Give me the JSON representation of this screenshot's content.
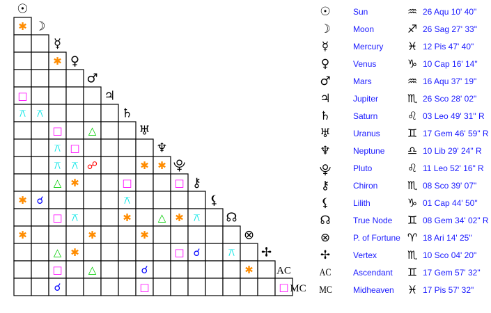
{
  "points": [
    {
      "name": "Sun",
      "glyph": "☉",
      "sign": "♒︎",
      "position": "26 Aqu 10' 40\""
    },
    {
      "name": "Moon",
      "glyph": "☽",
      "sign": "♐︎",
      "position": "26 Sag 27' 33\""
    },
    {
      "name": "Mercury",
      "glyph": "☿",
      "sign": "♓︎",
      "position": "12 Pis 47' 40\""
    },
    {
      "name": "Venus",
      "glyph": "♀",
      "sign": "♑︎",
      "position": "10 Cap 16' 14\""
    },
    {
      "name": "Mars",
      "glyph": "♂",
      "sign": "♒︎",
      "position": "16 Aqu 37' 19\""
    },
    {
      "name": "Jupiter",
      "glyph": "♃",
      "sign": "♏︎",
      "position": "26 Sco 28' 02\""
    },
    {
      "name": "Saturn",
      "glyph": "♄",
      "sign": "♌︎",
      "position": "03 Leo 49' 31\" R"
    },
    {
      "name": "Uranus",
      "glyph": "♅",
      "sign": "♊︎",
      "position": "17 Gem 46' 59\" R"
    },
    {
      "name": "Neptune",
      "glyph": "♆",
      "sign": "♎︎",
      "position": "10 Lib 29' 24\" R"
    },
    {
      "name": "Pluto",
      "glyph": "⯓",
      "sign": "♌︎",
      "position": "11 Leo 52' 16\" R"
    },
    {
      "name": "Chiron",
      "glyph": "⚷",
      "sign": "♏︎",
      "position": "08 Sco 39' 07\""
    },
    {
      "name": "Lilith",
      "glyph": "⚸",
      "sign": "♑︎",
      "position": "01 Cap 44' 50\""
    },
    {
      "name": "True Node",
      "glyph": "☊",
      "sign": "♊︎",
      "position": "08 Gem 34' 02\" R"
    },
    {
      "name": "P. of Fortune",
      "glyph": "⊗",
      "sign": "♈︎",
      "position": "18 Ari 14' 25\""
    },
    {
      "name": "Vertex",
      "glyph": "✢",
      "sign": "♏︎",
      "position": "10 Sco 04' 20\""
    },
    {
      "name": "Ascendant",
      "glyph": "AC",
      "sign": "♊︎",
      "position": "17 Gem 57' 32\""
    },
    {
      "name": "Midheaven",
      "glyph": "MC",
      "sign": "♓︎",
      "position": "17 Pis 57' 32\""
    }
  ],
  "aspect_types": {
    "sextile": {
      "glyph": "✱",
      "color": "#ff8c00"
    },
    "square": {
      "glyph": "□",
      "color": "#ff00ff"
    },
    "trine": {
      "glyph": "△",
      "color": "#00cc00"
    },
    "quincunx": {
      "glyph": "⚻",
      "color": "#00e5e5"
    },
    "opposition": {
      "glyph": "☍",
      "color": "#ff0000"
    },
    "conjunction": {
      "glyph": "☌",
      "color": "#0000ff"
    }
  },
  "aspects": [
    {
      "a": "Moon",
      "b": "Sun",
      "type": "sextile"
    },
    {
      "a": "Venus",
      "b": "Mercury",
      "type": "sextile"
    },
    {
      "a": "Jupiter",
      "b": "Sun",
      "type": "square"
    },
    {
      "a": "Saturn",
      "b": "Sun",
      "type": "quincunx"
    },
    {
      "a": "Saturn",
      "b": "Moon",
      "type": "quincunx"
    },
    {
      "a": "Uranus",
      "b": "Mercury",
      "type": "square"
    },
    {
      "a": "Uranus",
      "b": "Mars",
      "type": "trine"
    },
    {
      "a": "Neptune",
      "b": "Mercury",
      "type": "quincunx"
    },
    {
      "a": "Neptune",
      "b": "Venus",
      "type": "square"
    },
    {
      "a": "Pluto",
      "b": "Mercury",
      "type": "quincunx"
    },
    {
      "a": "Pluto",
      "b": "Venus",
      "type": "quincunx"
    },
    {
      "a": "Pluto",
      "b": "Mars",
      "type": "opposition"
    },
    {
      "a": "Pluto",
      "b": "Uranus",
      "type": "sextile"
    },
    {
      "a": "Pluto",
      "b": "Neptune",
      "type": "sextile"
    },
    {
      "a": "Chiron",
      "b": "Mercury",
      "type": "trine"
    },
    {
      "a": "Chiron",
      "b": "Venus",
      "type": "sextile"
    },
    {
      "a": "Chiron",
      "b": "Saturn",
      "type": "square"
    },
    {
      "a": "Chiron",
      "b": "Pluto",
      "type": "square"
    },
    {
      "a": "Lilith",
      "b": "Sun",
      "type": "sextile"
    },
    {
      "a": "Lilith",
      "b": "Moon",
      "type": "conjunction"
    },
    {
      "a": "Lilith",
      "b": "Saturn",
      "type": "quincunx"
    },
    {
      "a": "True Node",
      "b": "Mercury",
      "type": "square"
    },
    {
      "a": "True Node",
      "b": "Venus",
      "type": "quincunx"
    },
    {
      "a": "True Node",
      "b": "Saturn",
      "type": "sextile"
    },
    {
      "a": "True Node",
      "b": "Neptune",
      "type": "trine"
    },
    {
      "a": "True Node",
      "b": "Pluto",
      "type": "sextile"
    },
    {
      "a": "True Node",
      "b": "Chiron",
      "type": "quincunx"
    },
    {
      "a": "P. of Fortune",
      "b": "Sun",
      "type": "sextile"
    },
    {
      "a": "P. of Fortune",
      "b": "Mars",
      "type": "sextile"
    },
    {
      "a": "P. of Fortune",
      "b": "Uranus",
      "type": "sextile"
    },
    {
      "a": "Vertex",
      "b": "Mercury",
      "type": "trine"
    },
    {
      "a": "Vertex",
      "b": "Venus",
      "type": "sextile"
    },
    {
      "a": "Vertex",
      "b": "Pluto",
      "type": "square"
    },
    {
      "a": "Vertex",
      "b": "Chiron",
      "type": "conjunction"
    },
    {
      "a": "Vertex",
      "b": "True Node",
      "type": "quincunx"
    },
    {
      "a": "Ascendant",
      "b": "Mercury",
      "type": "square"
    },
    {
      "a": "Ascendant",
      "b": "Mars",
      "type": "trine"
    },
    {
      "a": "Ascendant",
      "b": "Uranus",
      "type": "conjunction"
    },
    {
      "a": "Ascendant",
      "b": "P. of Fortune",
      "type": "sextile"
    },
    {
      "a": "Midheaven",
      "b": "Mercury",
      "type": "conjunction"
    },
    {
      "a": "Midheaven",
      "b": "Uranus",
      "type": "square"
    },
    {
      "a": "Midheaven",
      "b": "Ascendant",
      "type": "square"
    }
  ]
}
